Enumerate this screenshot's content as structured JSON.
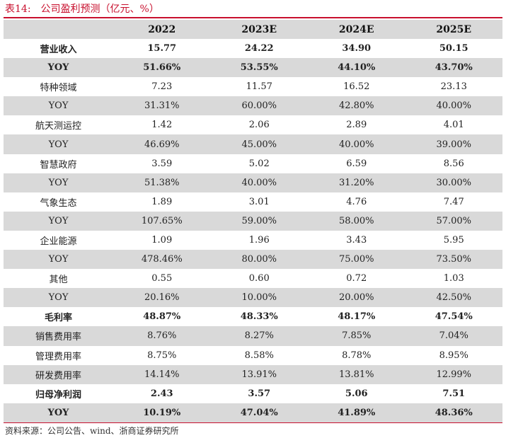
{
  "caption": {
    "label": "表14:",
    "title": "公司盈利预测（亿元、%）"
  },
  "table": {
    "columns": [
      "",
      "2022",
      "2023E",
      "2024E",
      "2025E"
    ],
    "rows": [
      {
        "label": "营业收入",
        "values": [
          "15.77",
          "24.22",
          "34.90",
          "50.15"
        ],
        "bold": true,
        "shade": false
      },
      {
        "label": "YOY",
        "values": [
          "51.66%",
          "53.55%",
          "44.10%",
          "43.70%"
        ],
        "bold": true,
        "shade": true
      },
      {
        "label": "特种领域",
        "values": [
          "7.23",
          "11.57",
          "16.52",
          "23.13"
        ],
        "bold": false,
        "shade": false
      },
      {
        "label": "YOY",
        "values": [
          "31.31%",
          "60.00%",
          "42.80%",
          "40.00%"
        ],
        "bold": false,
        "shade": true
      },
      {
        "label": "航天测运控",
        "values": [
          "1.42",
          "2.06",
          "2.89",
          "4.01"
        ],
        "bold": false,
        "shade": false
      },
      {
        "label": "YOY",
        "values": [
          "46.69%",
          "45.00%",
          "40.00%",
          "39.00%"
        ],
        "bold": false,
        "shade": true
      },
      {
        "label": "智慧政府",
        "values": [
          "3.59",
          "5.02",
          "6.59",
          "8.56"
        ],
        "bold": false,
        "shade": false
      },
      {
        "label": "YOY",
        "values": [
          "51.38%",
          "40.00%",
          "31.20%",
          "30.00%"
        ],
        "bold": false,
        "shade": true
      },
      {
        "label": "气象生态",
        "values": [
          "1.89",
          "3.01",
          "4.76",
          "7.47"
        ],
        "bold": false,
        "shade": false
      },
      {
        "label": "YOY",
        "values": [
          "107.65%",
          "59.00%",
          "58.00%",
          "57.00%"
        ],
        "bold": false,
        "shade": true
      },
      {
        "label": "企业能源",
        "values": [
          "1.09",
          "1.96",
          "3.43",
          "5.95"
        ],
        "bold": false,
        "shade": false
      },
      {
        "label": "YOY",
        "values": [
          "478.46%",
          "80.00%",
          "75.00%",
          "73.50%"
        ],
        "bold": false,
        "shade": true
      },
      {
        "label": "其他",
        "values": [
          "0.55",
          "0.60",
          "0.72",
          "1.03"
        ],
        "bold": false,
        "shade": false
      },
      {
        "label": "YOY",
        "values": [
          "20.16%",
          "10.00%",
          "20.00%",
          "42.50%"
        ],
        "bold": false,
        "shade": true
      },
      {
        "label": "毛利率",
        "values": [
          "48.87%",
          "48.33%",
          "48.17%",
          "47.54%"
        ],
        "bold": true,
        "shade": false
      },
      {
        "label": "销售费用率",
        "values": [
          "8.76%",
          "8.27%",
          "7.85%",
          "7.04%"
        ],
        "bold": false,
        "shade": true
      },
      {
        "label": "管理费用率",
        "values": [
          "8.75%",
          "8.58%",
          "8.78%",
          "8.95%"
        ],
        "bold": false,
        "shade": false
      },
      {
        "label": "研发费用率",
        "values": [
          "14.14%",
          "13.91%",
          "13.81%",
          "12.99%"
        ],
        "bold": false,
        "shade": true
      },
      {
        "label": "归母净利润",
        "values": [
          "2.43",
          "3.57",
          "5.06",
          "7.51"
        ],
        "bold": true,
        "shade": false
      },
      {
        "label": "YOY",
        "values": [
          "10.19%",
          "47.04%",
          "41.89%",
          "48.36%"
        ],
        "bold": true,
        "shade": true
      }
    ]
  },
  "source": "资料来源：公司公告、wind、浙商证券研究所",
  "colors": {
    "accent": "#c8102e",
    "shade": "#d9d9d9"
  }
}
